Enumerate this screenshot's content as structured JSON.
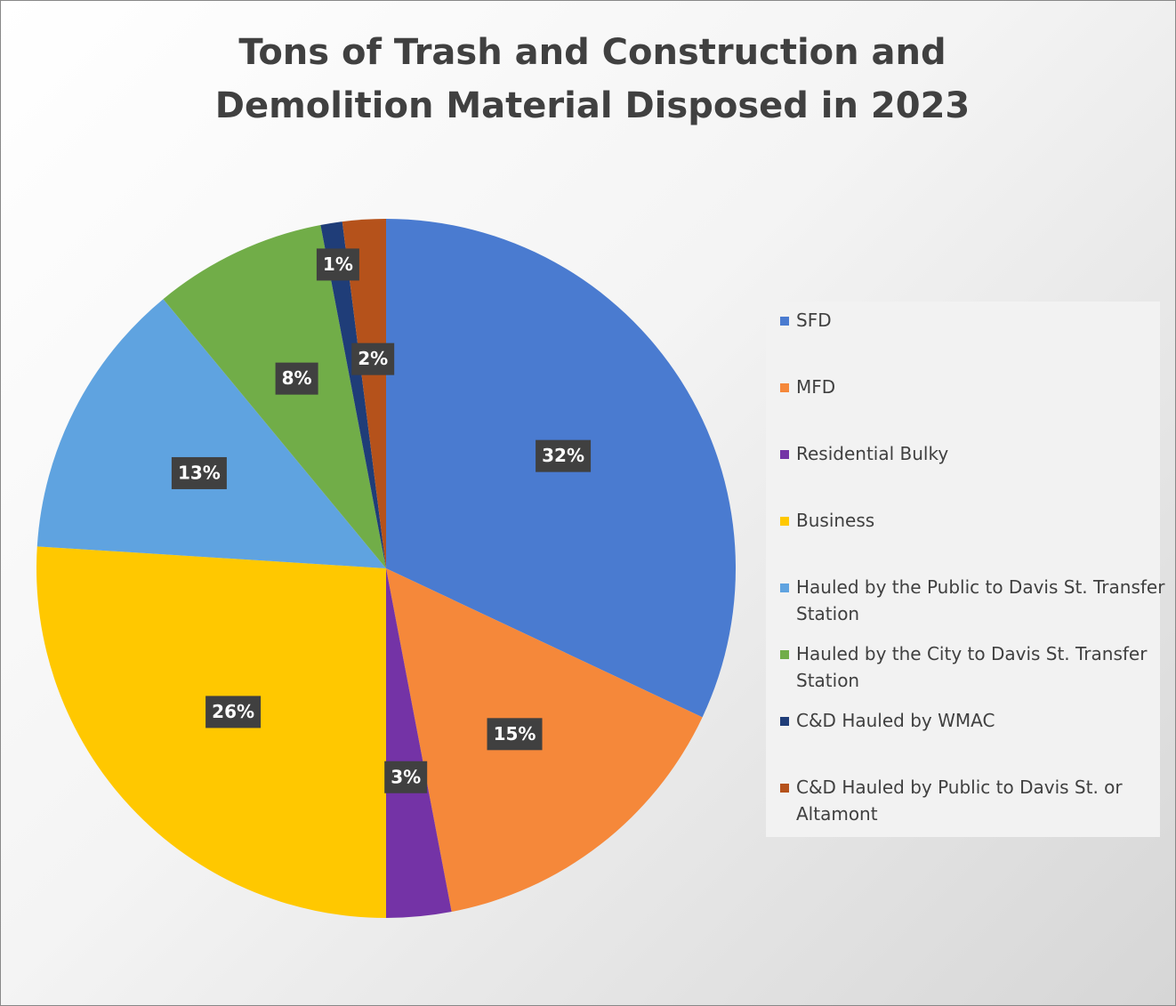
{
  "chart_data": {
    "type": "pie",
    "title": "Tons of Trash and Construction and Demolition Material Disposed in 2023",
    "categories": [
      "SFD",
      "MFD",
      "Residential Bulky",
      "Business",
      "Hauled by the Public to Davis St. Transfer Station",
      "Hauled by the City to Davis St. Transfer Station",
      "C&D Hauled by WMAC",
      "C&D Hauled by Public to Davis St. or Altamont"
    ],
    "values": [
      32,
      15,
      3,
      26,
      13,
      8,
      1,
      2
    ],
    "value_labels": [
      "32%",
      "15%",
      "3%",
      "26%",
      "13%",
      "8%",
      "1%",
      "2%"
    ],
    "colors": [
      "#4a7bd0",
      "#f5883a",
      "#7433a6",
      "#ffc800",
      "#5fa3e0",
      "#71ad48",
      "#1f3d78",
      "#b5521b"
    ],
    "legend": "right"
  }
}
